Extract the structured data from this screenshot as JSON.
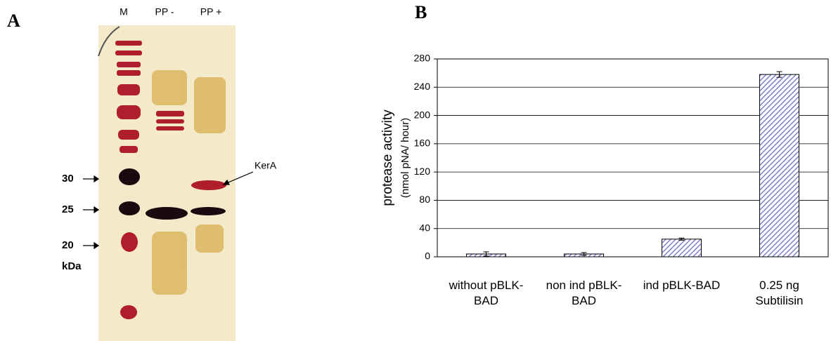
{
  "panels": {
    "a": "A",
    "b": "B"
  },
  "gel": {
    "lanes": [
      "M",
      "PP -",
      "PP +"
    ],
    "markers": [
      "30",
      "25",
      "20"
    ],
    "unit": "kDa",
    "annotation": "KerA"
  },
  "chart_data": {
    "type": "bar",
    "y_label": "protease activity",
    "y_label_unit": "(nmol pNA/ hour)",
    "categories": [
      "without pBLK-BAD",
      "non ind pBLK-BAD",
      "ind pBLK-BAD",
      "0.25 ng Subtilisin"
    ],
    "values": [
      4,
      4,
      25,
      258
    ],
    "errors": [
      3,
      2,
      1.5,
      4
    ],
    "color": "#7f7fd0",
    "ylim": [
      0,
      280
    ],
    "yticks": [
      0,
      40,
      80,
      120,
      160,
      200,
      240,
      280
    ],
    "grid": true
  }
}
